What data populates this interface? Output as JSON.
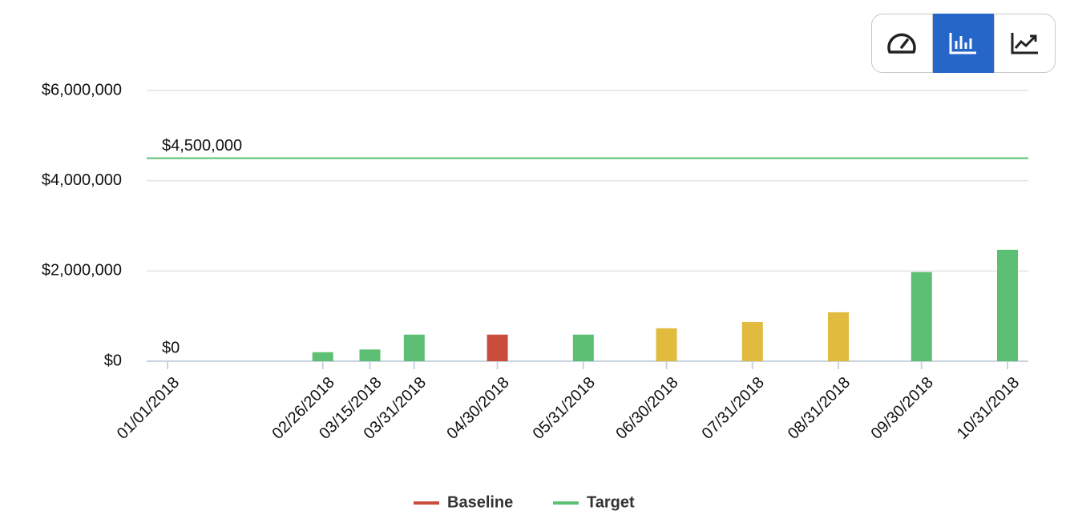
{
  "chart_data": {
    "type": "bar",
    "x": [
      "01/01/2018",
      "02/26/2018",
      "03/15/2018",
      "03/31/2018",
      "04/30/2018",
      "05/31/2018",
      "06/30/2018",
      "07/31/2018",
      "08/31/2018",
      "09/30/2018",
      "10/31/2018"
    ],
    "values": [
      0,
      200000,
      260000,
      590000,
      590000,
      590000,
      730000,
      870000,
      1085000,
      1975000,
      2470000
    ],
    "value_labels": [
      "$0",
      null,
      null,
      null,
      null,
      null,
      null,
      null,
      null,
      null,
      null
    ],
    "colors": [
      "#5dbf74",
      "#5dbf74",
      "#5dbf74",
      "#5dbf74",
      "#c94c3c",
      "#5dbf74",
      "#e0bb3e",
      "#e0bb3e",
      "#e0bb3e",
      "#5dbf74",
      "#5dbf74"
    ],
    "ylim": [
      0,
      6000000
    ],
    "yticks": [
      {
        "value": 0,
        "label": "$0"
      },
      {
        "value": 2000000,
        "label": "$2,000,000"
      },
      {
        "value": 4000000,
        "label": "$4,000,000"
      },
      {
        "value": 6000000,
        "label": "$6,000,000"
      }
    ],
    "grid": true,
    "target": {
      "value": 4500000,
      "label": "$4,500,000",
      "color": "#5dbf74"
    },
    "legend": [
      {
        "name": "Baseline",
        "color": "#c94c3c"
      },
      {
        "name": "Target",
        "color": "#5dbf74"
      }
    ],
    "legend_position": "bottom"
  }
}
